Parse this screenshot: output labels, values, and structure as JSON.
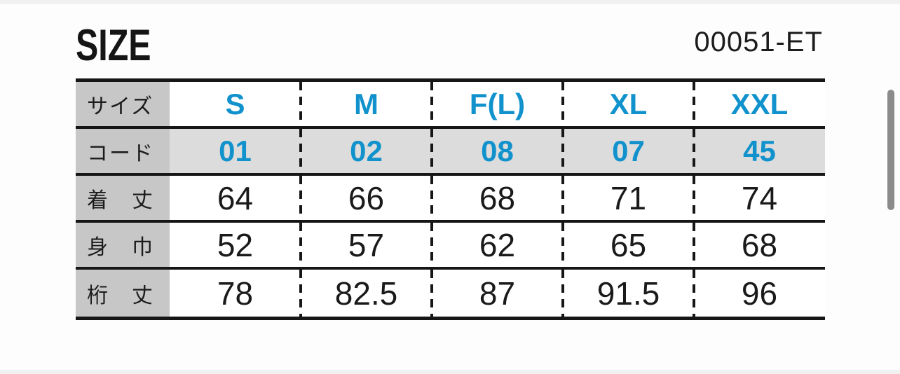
{
  "page": {
    "title": "SIZE",
    "product_code": "00051-ET"
  },
  "colors": {
    "accent_blue": "#1192cc",
    "label_cell_bg": "#c7c7c7",
    "code_row_bg": "#dcdcdc",
    "grid_line": "#161616",
    "scrollbar_gray": "#8b8b8b"
  },
  "size_table": {
    "size_row_label": "サイズ",
    "code_row_label": "コード",
    "sizes": [
      "S",
      "M",
      "F(L)",
      "XL",
      "XXL"
    ],
    "codes": [
      "01",
      "02",
      "08",
      "07",
      "45"
    ],
    "measurements": [
      {
        "label": "着　丈",
        "values": [
          "64",
          "66",
          "68",
          "71",
          "74"
        ]
      },
      {
        "label": "身　巾",
        "values": [
          "52",
          "57",
          "62",
          "65",
          "68"
        ]
      },
      {
        "label": "桁　丈",
        "values": [
          "78",
          "82.5",
          "87",
          "91.5",
          "96"
        ]
      }
    ]
  }
}
